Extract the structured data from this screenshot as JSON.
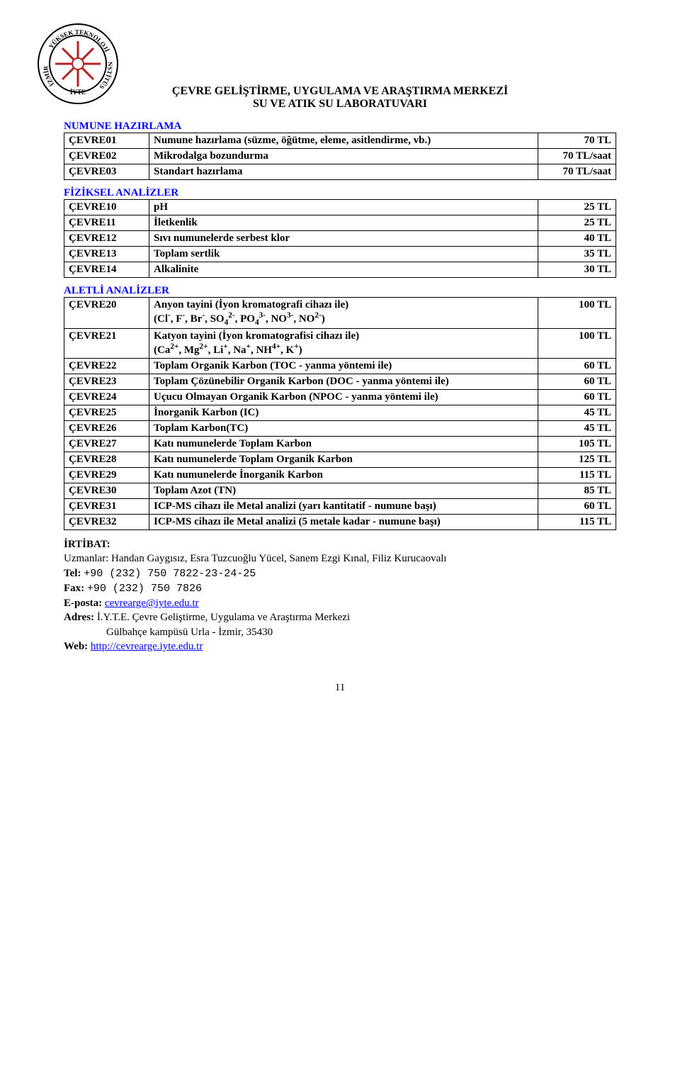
{
  "logo": {
    "outer_text_top": "YÜKSEK TEKNOLOJİ",
    "outer_text_left": "İZMİR",
    "outer_text_right": "ENSTİTÜSÜ",
    "inner_text": "İYTE",
    "star_color": "#b22222",
    "ring_color": "#000000"
  },
  "title_line1": "ÇEVRE GELİŞTİRME, UYGULAMA VE ARAŞTIRMA MERKEZİ",
  "title_line2": "SU VE ATIK SU LABORATUVARI",
  "sections": {
    "numune": {
      "heading": "NUMUNE HAZIRLAMA",
      "rows": [
        {
          "code": "ÇEVRE01",
          "desc": "Numune hazırlama (süzme, öğütme, eleme, asitlendirme, vb.)",
          "price": "70 TL"
        },
        {
          "code": "ÇEVRE02",
          "desc": "Mikrodalga bozundurma",
          "price": "70 TL/saat"
        },
        {
          "code": "ÇEVRE03",
          "desc": "Standart hazırlama",
          "price": "70 TL/saat"
        }
      ]
    },
    "fiziksel": {
      "heading": "FİZİKSEL ANALİZLER",
      "rows": [
        {
          "code": "ÇEVRE10",
          "desc": "pH",
          "price": "25 TL"
        },
        {
          "code": "ÇEVRE11",
          "desc": "İletkenlik",
          "price": "25 TL"
        },
        {
          "code": "ÇEVRE12",
          "desc": "Sıvı numunelerde serbest klor",
          "price": "40 TL"
        },
        {
          "code": "ÇEVRE13",
          "desc": "Toplam sertlik",
          "price": "35 TL"
        },
        {
          "code": "ÇEVRE14",
          "desc": "Alkalinite",
          "price": "30 TL"
        }
      ]
    },
    "aletli": {
      "heading": "ALETLİ ANALİZLER",
      "rows": [
        {
          "code": "ÇEVRE20",
          "desc_html": "Anyon tayini (İyon kromatografi cihazı ile)<br>(Cl<sup>-</sup>, F<sup>-</sup>, Br<sup>-</sup>, SO<sub>4</sub><sup>2-</sup>, PO<sub>4</sub><sup>3-</sup>, NO<sup>3-</sup>, NO<sup>2-</sup>)",
          "price": "100 TL"
        },
        {
          "code": "ÇEVRE21",
          "desc_html": "Katyon tayini (İyon kromatografisi cihazı ile)<br>(Ca<sup>2+</sup>, Mg<sup>2+</sup>, Li<sup>+</sup>, Na<sup>+</sup>, NH<sup>4+</sup>, K<sup>+</sup>)",
          "price": "100 TL"
        },
        {
          "code": "ÇEVRE22",
          "desc": "Toplam Organik Karbon (TOC - yanma yöntemi ile)",
          "price": "60 TL"
        },
        {
          "code": "ÇEVRE23",
          "desc": "Toplam Çözünebilir Organik Karbon (DOC - yanma yöntemi ile)",
          "price": "60 TL"
        },
        {
          "code": "ÇEVRE24",
          "desc": "Uçucu Olmayan Organik Karbon (NPOC - yanma yöntemi ile)",
          "price": "60 TL"
        },
        {
          "code": "ÇEVRE25",
          "desc": "İnorganik Karbon (IC)",
          "price": "45 TL"
        },
        {
          "code": "ÇEVRE26",
          "desc": "Toplam Karbon(TC)",
          "price": "45 TL"
        },
        {
          "code": "ÇEVRE27",
          "desc": "Katı numunelerde Toplam Karbon",
          "price": "105 TL"
        },
        {
          "code": "ÇEVRE28",
          "desc": "Katı numunelerde Toplam Organik Karbon",
          "price": "125 TL"
        },
        {
          "code": "ÇEVRE29",
          "desc": "Katı numunelerde İnorganik Karbon",
          "price": "115 TL"
        },
        {
          "code": "ÇEVRE30",
          "desc": "Toplam Azot (TN)",
          "price": "85 TL"
        },
        {
          "code": "ÇEVRE31",
          "desc": "ICP-MS cihazı ile Metal analizi (yarı kantitatif - numune başı)",
          "price": "60 TL"
        },
        {
          "code": "ÇEVRE32",
          "desc": "ICP-MS cihazı ile Metal analizi (5 metale kadar - numune başı)",
          "price": "115 TL"
        }
      ]
    }
  },
  "contact": {
    "label": "İRTİBAT:",
    "uzmanlar": "Uzmanlar: Handan Gaygısız, Esra Tuzcuoğlu Yücel, Sanem Ezgi Kınal, Filiz Kurucaovalı",
    "tel_label": "Tel:",
    "tel": "+90 (232) 750 7822-23-24-25",
    "fax_label": "Fax:",
    "fax": "+90 (232) 750 7826",
    "eposta_label": "E-posta:",
    "eposta": "cevrearge@iyte.edu.tr",
    "adres_label": "Adres:",
    "adres_line1": "İ.Y.T.E. Çevre Geliştirme, Uygulama ve Araştırma Merkezi",
    "adres_line2": "Gülbahçe kampüsü Urla - İzmir, 35430",
    "web_label": "Web:",
    "web": "http://cevrearge.iyte.edu.tr"
  },
  "page_number": "11"
}
